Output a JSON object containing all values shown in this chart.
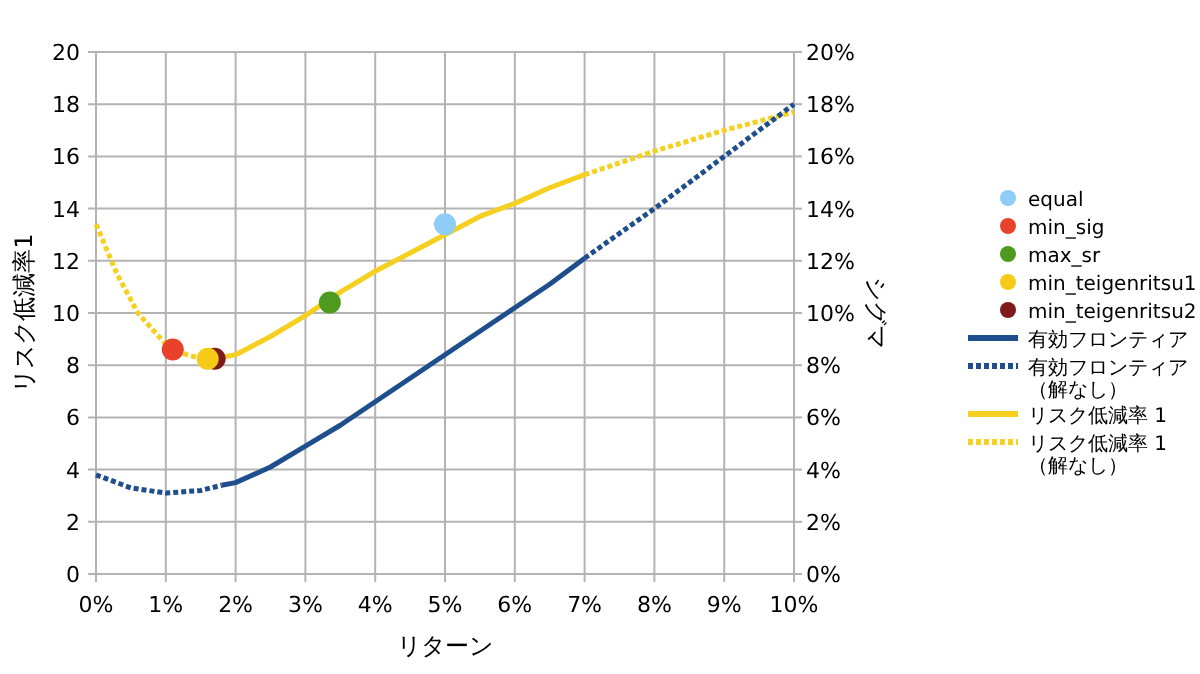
{
  "chart_data": {
    "type": "line",
    "xlabel": "リターン",
    "ylabel": "リスク低減率1",
    "y2label": "シグマ",
    "xlim": [
      0,
      10
    ],
    "xticks": [
      {
        "value": 0,
        "label": "0%"
      },
      {
        "value": 1,
        "label": "1%"
      },
      {
        "value": 2,
        "label": "2%"
      },
      {
        "value": 3,
        "label": "3%"
      },
      {
        "value": 4,
        "label": "4%"
      },
      {
        "value": 5,
        "label": "5%"
      },
      {
        "value": 6,
        "label": "6%"
      },
      {
        "value": 7,
        "label": "7%"
      },
      {
        "value": 8,
        "label": "8%"
      },
      {
        "value": 9,
        "label": "9%"
      },
      {
        "value": 10,
        "label": "10%"
      }
    ],
    "ylim": [
      0,
      20
    ],
    "yticks": [
      0,
      2,
      4,
      6,
      8,
      10,
      12,
      14,
      16,
      18,
      20
    ],
    "y2lim": [
      0,
      0.2
    ],
    "y2ticks": [
      {
        "value": 0,
        "label": "0%"
      },
      {
        "value": 0.02,
        "label": "2%"
      },
      {
        "value": 0.04,
        "label": "4%"
      },
      {
        "value": 0.06,
        "label": "6%"
      },
      {
        "value": 0.08,
        "label": "8%"
      },
      {
        "value": 0.1,
        "label": "10%"
      },
      {
        "value": 0.12,
        "label": "12%"
      },
      {
        "value": 0.14,
        "label": "14%"
      },
      {
        "value": 0.16,
        "label": "16%"
      },
      {
        "value": 0.18,
        "label": "18%"
      },
      {
        "value": 0.2,
        "label": "20%"
      }
    ],
    "grid": true,
    "legend": "right",
    "series": [
      {
        "type": "scatter",
        "name": "equal",
        "color": "#8ecdf5",
        "marker": "circle",
        "x": [
          5.0
        ],
        "values": [
          13.4
        ]
      },
      {
        "type": "scatter",
        "name": "min_sig",
        "color": "#e8432a",
        "marker": "circle",
        "x": [
          1.1
        ],
        "values": [
          8.6
        ]
      },
      {
        "type": "scatter",
        "name": "max_sr",
        "color": "#4e9a1e",
        "marker": "circle",
        "x": [
          3.35
        ],
        "values": [
          10.4
        ]
      },
      {
        "type": "scatter",
        "name": "min_teigenritsu1",
        "color": "#f5cb18",
        "marker": "circle",
        "x": [
          1.6
        ],
        "values": [
          8.25
        ]
      },
      {
        "type": "scatter",
        "name": "min_teigenritsu2",
        "color": "#7f1a1a",
        "marker": "circle",
        "x": [
          1.7
        ],
        "values": [
          8.25
        ]
      },
      {
        "name": "有効フロンティア",
        "color": "#1f4e8c",
        "axis": "y2",
        "line_style": "solid",
        "x": [
          1.8,
          2,
          2.5,
          3,
          3.5,
          4,
          4.5,
          5,
          5.5,
          6,
          6.5,
          7
        ],
        "values": [
          0.034,
          0.035,
          0.041,
          0.049,
          0.057,
          0.066,
          0.075,
          0.084,
          0.093,
          0.102,
          0.111,
          0.121
        ]
      },
      {
        "name": "有効フロンティア（解なし）",
        "color": "#1f4e8c",
        "axis": "y2",
        "line_style": "dashed",
        "x": [
          0,
          0.5,
          1,
          1.5,
          1.8,
          null,
          7,
          8,
          9,
          10
        ],
        "values": [
          0.038,
          0.033,
          0.031,
          0.032,
          0.034,
          null,
          0.121,
          0.14,
          0.16,
          0.18
        ]
      },
      {
        "name": "リスク低減率 1",
        "color": "#f5d020",
        "line_style": "solid",
        "x": [
          1.6,
          2,
          2.5,
          3,
          3.5,
          4,
          4.5,
          5,
          5.5,
          6,
          6.5,
          7
        ],
        "values": [
          8.2,
          8.4,
          9.1,
          9.9,
          10.8,
          11.6,
          12.3,
          13.0,
          13.7,
          14.2,
          14.8,
          15.3
        ]
      },
      {
        "name": "リスク低減率 1（解なし）",
        "color": "#f5d020",
        "line_style": "dashed",
        "x": [
          0,
          0.3,
          0.6,
          1,
          1.3,
          1.6,
          null,
          7,
          8,
          9,
          10
        ],
        "values": [
          13.4,
          11.5,
          10.0,
          8.8,
          8.4,
          8.2,
          null,
          15.3,
          16.2,
          17.0,
          17.7
        ]
      }
    ]
  }
}
